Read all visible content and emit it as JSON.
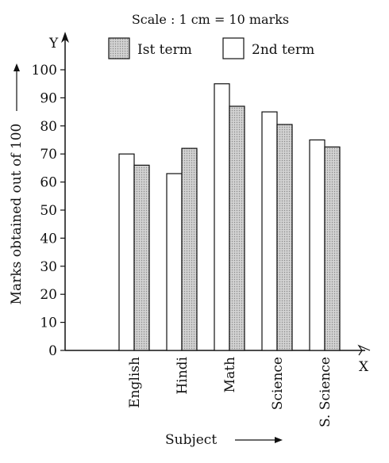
{
  "chart_data": {
    "type": "bar",
    "note": "Scale : 1 cm = 10 marks",
    "categories": [
      "English",
      "Hindi",
      "Math",
      "Science",
      "S. Science"
    ],
    "series": [
      {
        "name": "2nd term",
        "values": [
          70,
          63,
          95,
          85,
          75
        ],
        "fill": "#ffffff"
      },
      {
        "name": "Ist term",
        "values": [
          66,
          72,
          87,
          80.5,
          72.5
        ],
        "fill": "#c4c4c4"
      }
    ],
    "legend_order": [
      "Ist term",
      "2nd term"
    ],
    "legend_placement": "top",
    "xlabel": "Subject",
    "ylabel": "Marks obtained out of 100",
    "x_axis_letter": "X",
    "y_axis_letter": "Y",
    "ylim": [
      0,
      100
    ],
    "yticks": [
      "0",
      "10",
      "20",
      "30",
      "40",
      "50",
      "60",
      "70",
      "80",
      "90",
      "100"
    ],
    "grid": false
  }
}
